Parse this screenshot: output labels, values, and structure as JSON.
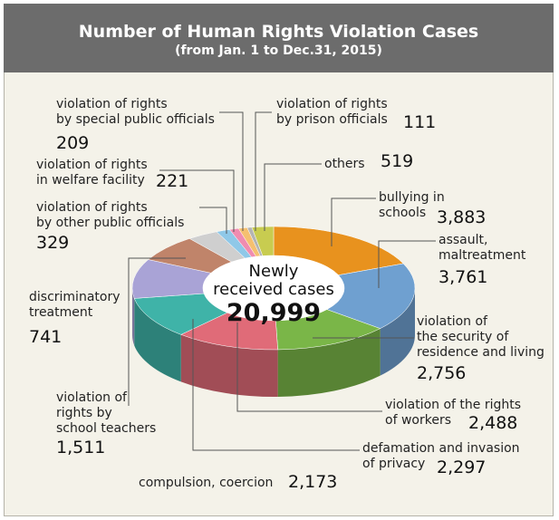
{
  "chart_data": {
    "type": "pie3d",
    "title": "Number of Human Rights Violation Cases",
    "subtitle": "(from Jan. 1 to Dec.31, 2015)",
    "center_text": "Newly\nreceived cases",
    "total": 20999,
    "total_label": "20,999",
    "categories": [
      "bullying in\nschools",
      "assault,\nmaltreatment",
      "violation of\nthe security of\nresidence and living",
      "violation of the rights\nof workers",
      "defamation and invasion\nof privacy",
      "compulsion, coercion",
      "violation of\nrights by\nschool teachers",
      "discriminatory\ntreatment",
      "violation of rights\nby other public officials",
      "violation of rights\nin welfare facility",
      "violation of rights\nby special public officials",
      "violation of rights\nby prison officials",
      "others"
    ],
    "values": [
      3883,
      3761,
      2756,
      2488,
      2297,
      2173,
      1511,
      741,
      329,
      221,
      209,
      111,
      519
    ],
    "value_labels": [
      "3,883",
      "3,761",
      "2,756",
      "2,488",
      "2,297",
      "2,173",
      "1,511",
      "741",
      "329",
      "221",
      "209",
      "111",
      "519"
    ],
    "colors": [
      "#e8921e",
      "#6fa0d0",
      "#7ab648",
      "#e06b78",
      "#3fb3a8",
      "#a9a3d6",
      "#c0846a",
      "#cfcfcf",
      "#8fc8e8",
      "#f08cb0",
      "#f5c070",
      "#b4b4b4",
      "#c8cc50"
    ]
  }
}
